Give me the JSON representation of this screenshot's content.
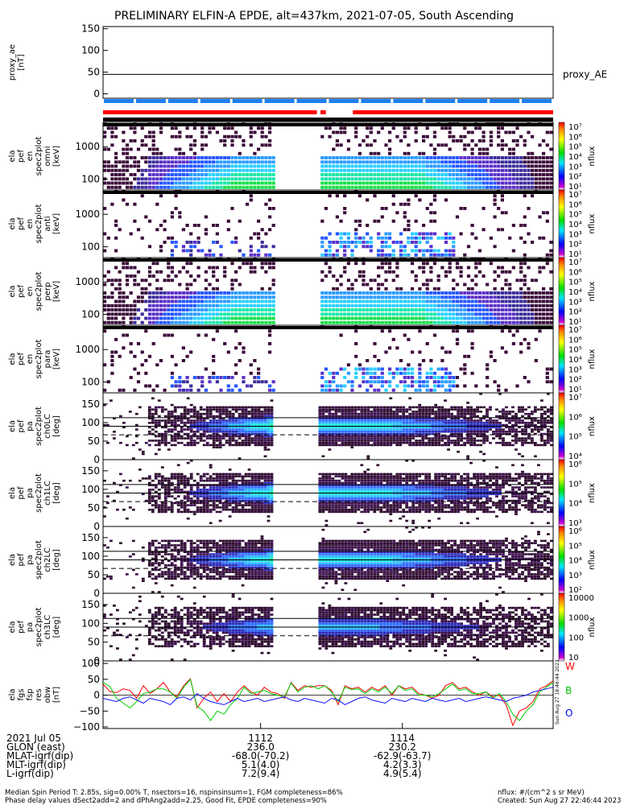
{
  "title": "PRELIMINARY ELFIN-A EPDE, alt=437km, 2021-07-05, South Ascending",
  "colors": {
    "red": "#ff0000",
    "blue": "#1f7ff0",
    "green": "#00d200",
    "black": "#000000"
  },
  "chart_data": [
    {
      "type": "line",
      "id": "proxy_ae",
      "ylabel": [
        "proxy_ae",
        "[nT]"
      ],
      "yticks": [
        "150",
        "100",
        "50",
        "0"
      ],
      "ylim": [
        -10,
        155
      ],
      "series": [
        {
          "name": "proxy_AE",
          "values": [
            45,
            45
          ]
        }
      ]
    },
    {
      "type": "heatmap",
      "id": "en1",
      "ylabel": [
        "ela",
        "pef",
        "en",
        "spec2plot",
        "omni",
        "[keV]"
      ],
      "yticks": [
        "1000",
        "100"
      ],
      "ylim_keV": [
        60,
        7000
      ],
      "colorbar": {
        "label": "nflux",
        "ticks": [
          "10⁷",
          "10⁶",
          "10⁵",
          "10⁴",
          "10³",
          "10²",
          "10¹"
        ]
      }
    },
    {
      "type": "heatmap",
      "id": "en2",
      "ylabel": [
        "ela",
        "pef",
        "en",
        "spec2plot",
        "anti",
        "[keV]"
      ],
      "yticks": [
        "1000",
        "100"
      ],
      "ylim_keV": [
        60,
        7000
      ],
      "colorbar": {
        "label": "nflux",
        "ticks": [
          "10⁷",
          "10⁶",
          "10⁵",
          "10⁴",
          "10³",
          "10²",
          "10¹"
        ]
      }
    },
    {
      "type": "heatmap",
      "id": "en3",
      "ylabel": [
        "ela",
        "pef",
        "en",
        "spec2plot",
        "perp",
        "[keV]"
      ],
      "yticks": [
        "1000",
        "100"
      ],
      "ylim_keV": [
        60,
        7000
      ],
      "colorbar": {
        "label": "nflux",
        "ticks": [
          "10⁷",
          "10⁶",
          "10⁵",
          "10⁴",
          "10³",
          "10²",
          "10¹"
        ]
      }
    },
    {
      "type": "heatmap",
      "id": "en4",
      "ylabel": [
        "ela",
        "pef",
        "en",
        "spec2plot",
        "para",
        "[keV]"
      ],
      "yticks": [
        "1000",
        "100"
      ],
      "ylim_keV": [
        60,
        7000
      ],
      "colorbar": {
        "label": "nflux",
        "ticks": [
          "10⁷",
          "10⁶",
          "10⁵",
          "10⁴",
          "10³",
          "10²",
          "10¹"
        ]
      }
    },
    {
      "type": "heatmap",
      "id": "pa0",
      "ylabel": [
        "ela",
        "pef",
        "pa",
        "spec2plot",
        "ch0LC",
        "[deg]"
      ],
      "yticks": [
        "150",
        "100",
        "50",
        "0"
      ],
      "ylim_deg": [
        0,
        180
      ],
      "lines_deg": [
        113,
        90,
        67
      ],
      "colorbar": {
        "label": "nflux",
        "ticks": [
          "10⁷",
          "10⁶",
          "10⁵",
          "10⁴"
        ]
      }
    },
    {
      "type": "heatmap",
      "id": "pa1",
      "ylabel": [
        "ela",
        "pef",
        "pa",
        "spec2plot",
        "ch1LC",
        "[deg]"
      ],
      "yticks": [
        "150",
        "100",
        "50",
        "0"
      ],
      "ylim_deg": [
        0,
        180
      ],
      "lines_deg": [
        113,
        90,
        67
      ],
      "colorbar": {
        "label": "nflux",
        "ticks": [
          "10⁶",
          "10⁵",
          "10⁴",
          "10³"
        ]
      }
    },
    {
      "type": "heatmap",
      "id": "pa2",
      "ylabel": [
        "ela",
        "pef",
        "pa",
        "spec2plot",
        "ch2LC",
        "[deg]"
      ],
      "yticks": [
        "150",
        "100",
        "50",
        "0"
      ],
      "ylim_deg": [
        0,
        180
      ],
      "lines_deg": [
        113,
        90,
        67
      ],
      "colorbar": {
        "label": "nflux",
        "ticks": [
          "10⁶",
          "10⁵",
          "10⁴",
          "10³",
          "10²"
        ]
      }
    },
    {
      "type": "heatmap",
      "id": "pa3",
      "ylabel": [
        "ela",
        "pef",
        "pa",
        "spec2plot",
        "ch3LC",
        "[deg]"
      ],
      "yticks": [
        "150",
        "100",
        "50",
        "0"
      ],
      "ylim_deg": [
        0,
        180
      ],
      "lines_deg": [
        113,
        90,
        67
      ],
      "colorbar": {
        "label": "nflux",
        "ticks": [
          "10000",
          "1000",
          "100",
          "10"
        ]
      }
    },
    {
      "type": "line",
      "id": "fgm",
      "ylabel": [
        "ela",
        "fgs",
        "fsp",
        "res",
        "obw",
        "[nT]"
      ],
      "yticks": [
        "100",
        "50",
        "0",
        "−50",
        "−100"
      ],
      "ylim": [
        -105,
        108
      ],
      "legend": [
        "W",
        "B",
        "O"
      ],
      "series": [
        {
          "name": "W",
          "values": [
            35,
            12,
            8,
            20,
            15,
            -10,
            30,
            5,
            20,
            40,
            10,
            -5,
            30,
            52,
            -40,
            -10,
            10,
            -20,
            5,
            -20,
            10,
            30,
            10,
            0,
            25,
            10,
            5,
            -10,
            40,
            15,
            30,
            25,
            30,
            30,
            15,
            -30,
            30,
            20,
            25,
            10,
            25,
            15,
            30,
            0,
            30,
            20,
            25,
            5,
            0,
            -10,
            0,
            30,
            40,
            20,
            25,
            10,
            0,
            10,
            -5,
            0,
            -30,
            -95,
            -50,
            -40,
            -20,
            20,
            30,
            45
          ]
        },
        {
          "name": "B",
          "values": [
            40,
            28,
            -10,
            -25,
            -40,
            -20,
            5,
            10,
            20,
            20,
            10,
            -10,
            25,
            50,
            -35,
            -50,
            -80,
            -50,
            -60,
            -30,
            -10,
            25,
            5,
            10,
            15,
            5,
            0,
            -5,
            38,
            10,
            25,
            30,
            20,
            30,
            10,
            -20,
            25,
            18,
            20,
            5,
            20,
            10,
            25,
            5,
            30,
            15,
            20,
            0,
            0,
            -5,
            5,
            20,
            35,
            15,
            20,
            5,
            5,
            10,
            -10,
            5,
            -20,
            -60,
            -80,
            -50,
            -30,
            10,
            25,
            40
          ]
        },
        {
          "name": "O",
          "values": [
            -10,
            -15,
            -20,
            -10,
            -5,
            -15,
            -25,
            -10,
            -15,
            -20,
            -30,
            -10,
            -5,
            -15,
            5,
            -10,
            -20,
            -25,
            -30,
            -20,
            -10,
            -20,
            -15,
            -10,
            -20,
            -15,
            -10,
            -5,
            -15,
            -20,
            -10,
            -15,
            -20,
            -25,
            -10,
            -15,
            -30,
            -20,
            -10,
            -5,
            -15,
            -20,
            -25,
            -10,
            -15,
            -20,
            -10,
            -15,
            -20,
            -10,
            -15,
            -20,
            -15,
            -10,
            -20,
            -15,
            -10,
            -5,
            -10,
            -15,
            -20,
            -10,
            -5,
            0,
            10,
            15,
            20,
            25
          ]
        }
      ]
    }
  ],
  "bars": {
    "blue_segments": 14,
    "red": [
      [
        0,
        0.475
      ],
      [
        0.483,
        0.495
      ],
      [
        0.555,
        1.0
      ]
    ]
  },
  "xaxis": {
    "rows": [
      {
        "label": "2021 Jul 05",
        "v1": "1112",
        "v2": "1114"
      },
      {
        "label": "GLON (east)",
        "v1": "236.0",
        "v2": "230.2"
      },
      {
        "label": "MLAT-igrf(dip)",
        "v1": "-68.0(-70.2)",
        "v2": "-62.9(-63.7)"
      },
      {
        "label": "MLT-igrf(dip)",
        "v1": "5.1(4.0)",
        "v2": "4.2(3.3)"
      },
      {
        "label": "L-igrf(dip)",
        "v1": "7.2(9.4)",
        "v2": "4.9(5.4)"
      }
    ]
  },
  "footer": {
    "left1": "Median Spin Period T: 2.85s, sig=0.00% T, nsectors=16, nspinsinsum=1, FGM completeness=86%",
    "left2": "Phase delay values dSect2add=2 and dPhAng2add=2.25, Good Fit, EPDE completeness=90%",
    "right1": "nflux: #/(cm^2 s sr MeV)",
    "right2": "Created: Sun Aug 27 22:46:44 2023",
    "stamp": "Sun Aug 27 18:46:44 2023"
  }
}
